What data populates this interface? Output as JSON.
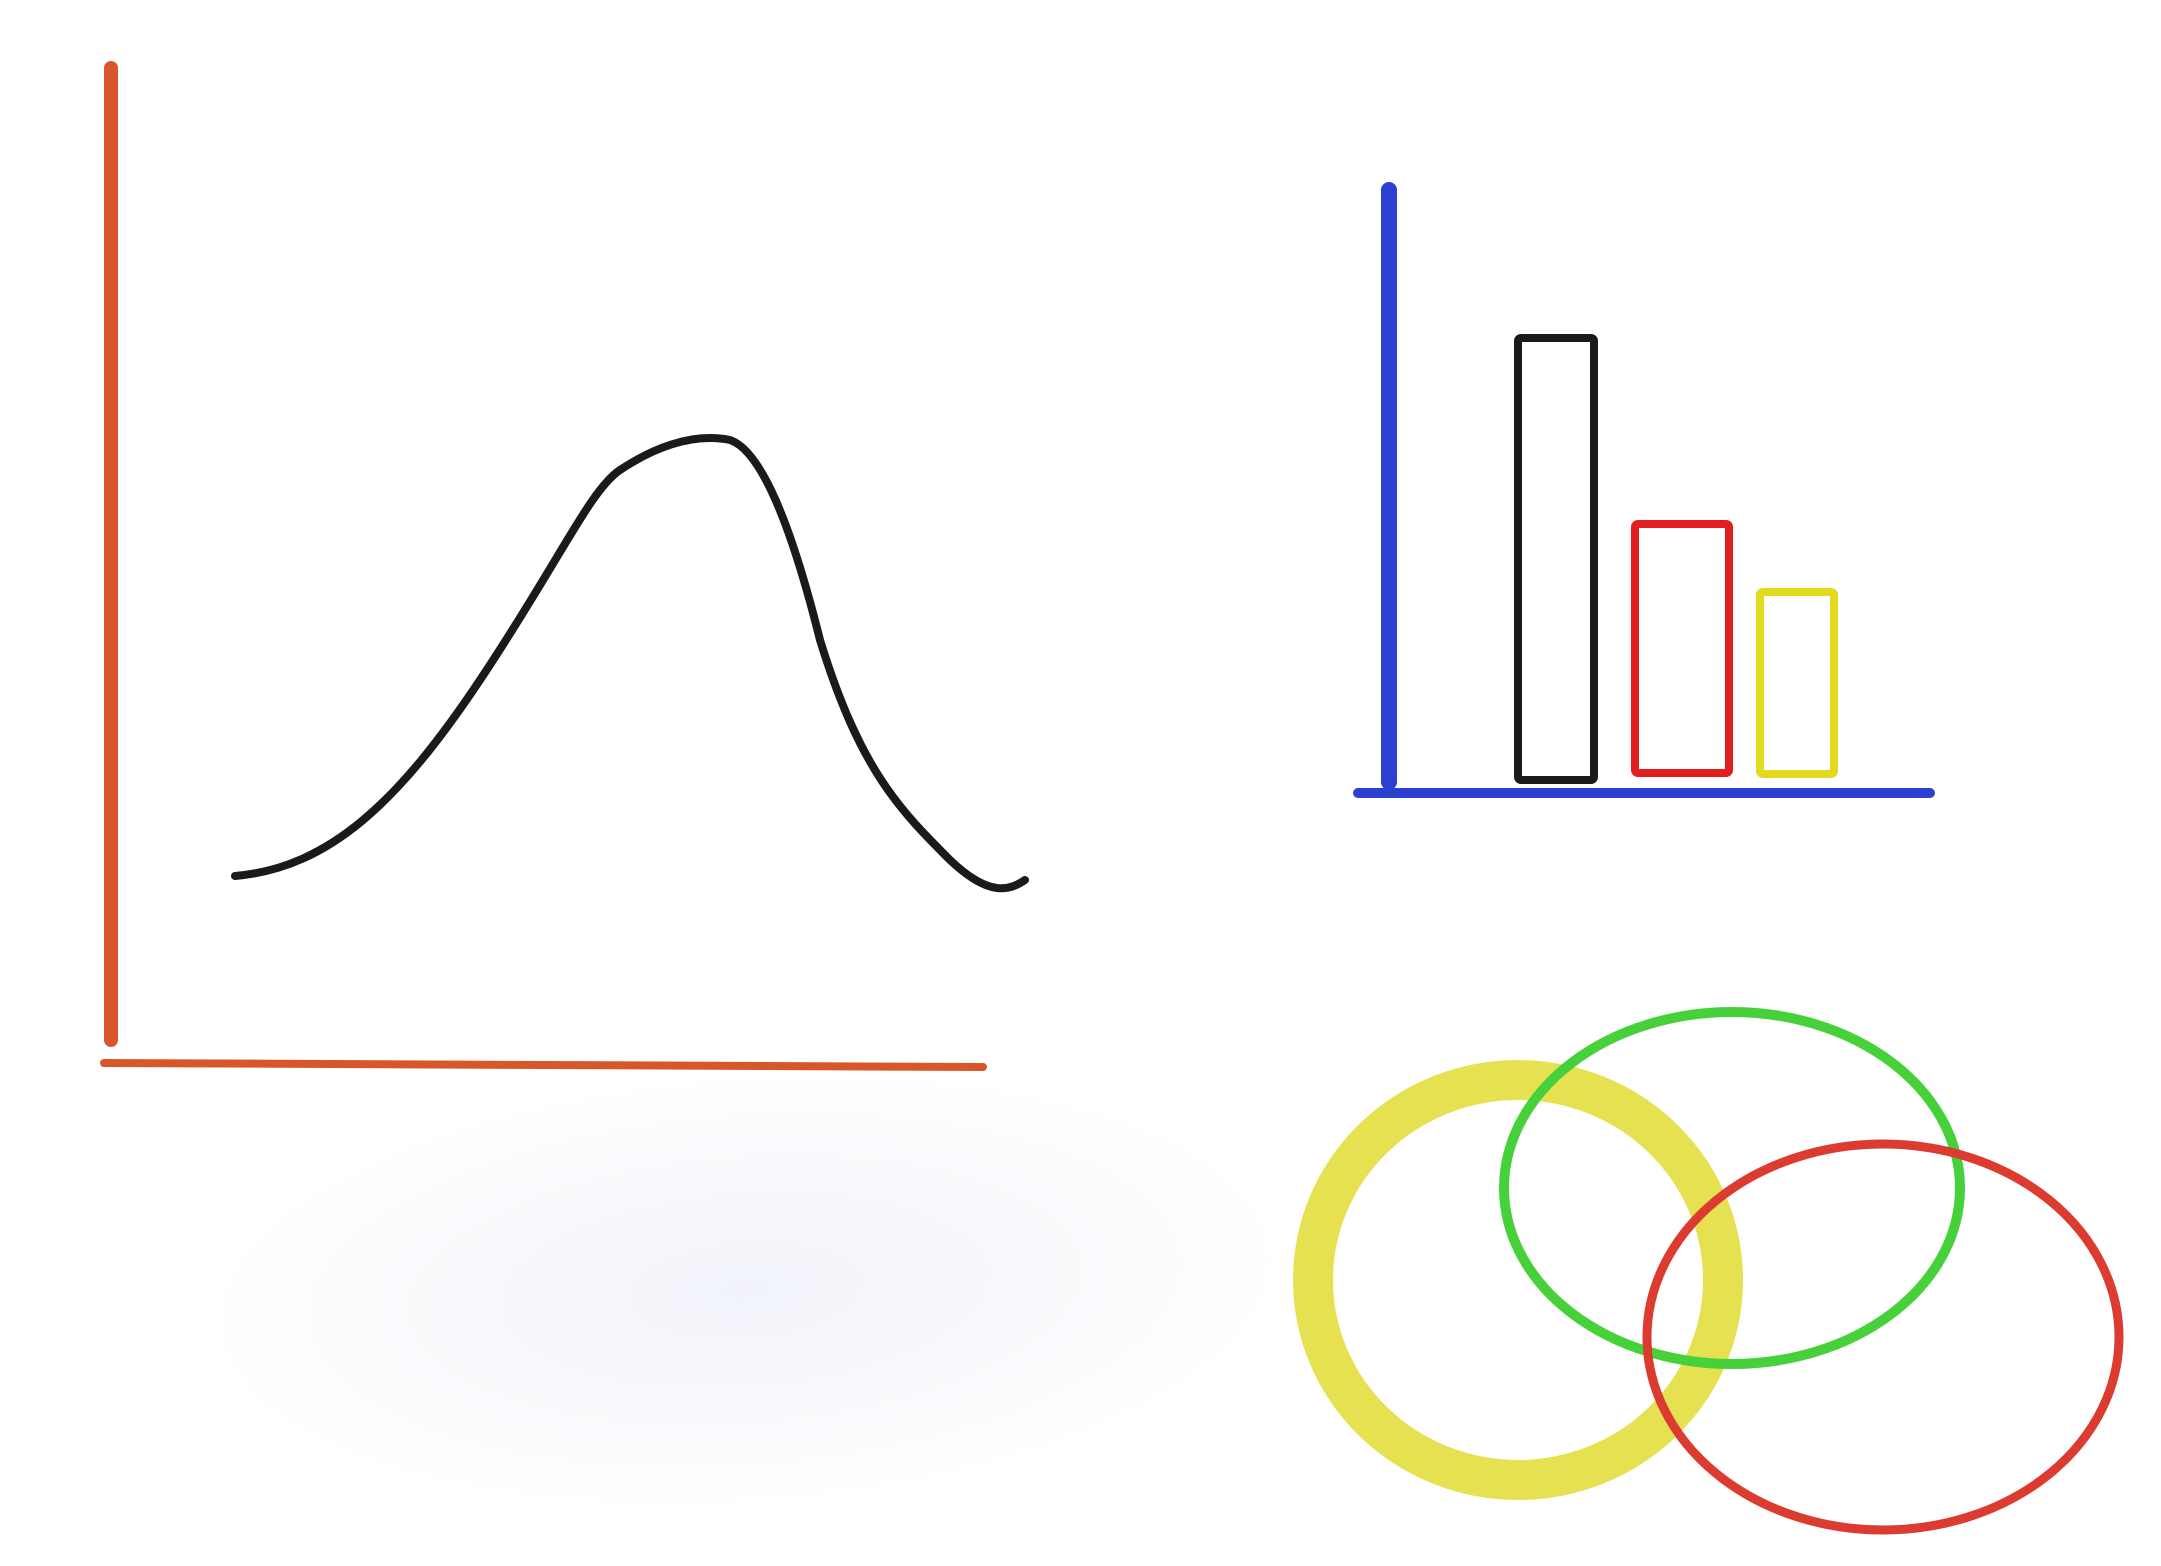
{
  "drawings": [
    {
      "kind": "bell-curve",
      "axis_color": "#d9552c",
      "curve_color": "#1a1a1a"
    },
    {
      "kind": "bar-chart",
      "axis_color": "#2b3fd1",
      "bar_colors": [
        "#1a1a1a",
        "#e11f1f",
        "#e3d91f"
      ],
      "bar_values": [
        100,
        58,
        42
      ]
    },
    {
      "kind": "venn",
      "ring_colors": [
        "#e2dc31",
        "#46d13a",
        "#dc3c30"
      ]
    }
  ]
}
